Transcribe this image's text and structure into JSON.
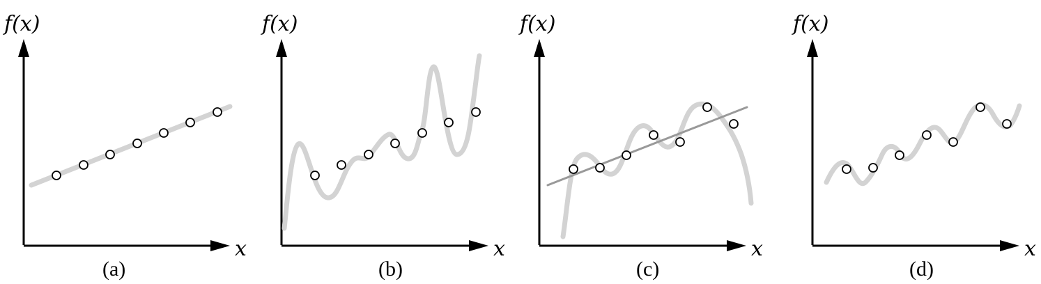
{
  "panels": [
    {
      "ylabel": "f(x)",
      "xlabel": "x",
      "caption": "(a)"
    },
    {
      "ylabel": "f(x)",
      "xlabel": "x",
      "caption": "(b)"
    },
    {
      "ylabel": "f(x)",
      "xlabel": "x",
      "caption": "(c)"
    },
    {
      "ylabel": "f(x)",
      "xlabel": "x",
      "caption": "(d)"
    }
  ],
  "colors": {
    "axes": "#000000",
    "curve": "#d3d3d3",
    "fit_line": "#999999",
    "points": "#ffffff"
  }
}
